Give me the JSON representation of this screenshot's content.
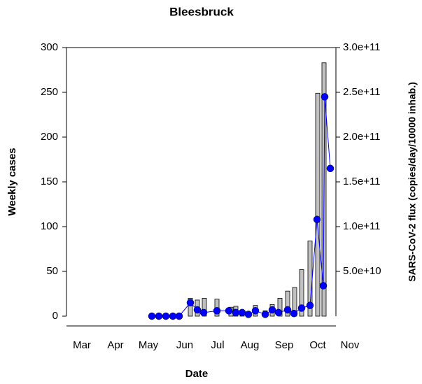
{
  "chart_data": {
    "type": "combo",
    "title": "Bleesbruck",
    "x_label": "Date",
    "y_label": "Weekly cases",
    "y2_label": "SARS-CoV-2 flux (copies/day/10000 inhab.)",
    "xlim": [
      0,
      38.5
    ],
    "xticks": [
      {
        "value": 2.2,
        "label": "Mar"
      },
      {
        "value": 7,
        "label": "Apr"
      },
      {
        "value": 11.7,
        "label": "May"
      },
      {
        "value": 16.9,
        "label": "Jun"
      },
      {
        "value": 21.6,
        "label": "Jul"
      },
      {
        "value": 26.2,
        "label": "Aug"
      },
      {
        "value": 31.1,
        "label": "Sep"
      },
      {
        "value": 35.9,
        "label": "Oct"
      },
      {
        "value": 40.5,
        "label": "Nov"
      }
    ],
    "ylim": [
      0,
      300
    ],
    "yticks": [
      0,
      50,
      100,
      150,
      200,
      250,
      300
    ],
    "y2lim": [
      0,
      300000000000
    ],
    "y2ticks": [
      {
        "value": 50000000000,
        "label": "5.0e+10"
      },
      {
        "value": 100000000000,
        "label": "1.0e+11"
      },
      {
        "value": 150000000000,
        "label": "1.5e+11"
      },
      {
        "value": 200000000000,
        "label": "2.0e+11"
      },
      {
        "value": 250000000000,
        "label": "2.5e+11"
      },
      {
        "value": 300000000000,
        "label": "3.0e+11"
      }
    ],
    "series": [
      {
        "type": "bar",
        "color": "#c0c0c0",
        "x": [
          17.7,
          18.7,
          19.7,
          21.5,
          23.5,
          24.2,
          25.1,
          27.0,
          28.4,
          29.4,
          30.5,
          31.6,
          32.6,
          33.6,
          34.8,
          35.9,
          36.8
        ],
        "values": [
          20,
          18,
          20,
          19,
          10,
          11,
          5,
          12,
          6,
          13,
          20,
          28,
          32,
          52,
          84,
          249,
          283
        ]
      },
      {
        "type": "line",
        "axis": "y2",
        "color": "#0000ff",
        "x": [
          12.2,
          13.2,
          14.2,
          15.2,
          16.1,
          17.7,
          18.7,
          19.6,
          21.5,
          23.2,
          24.2,
          25.1,
          26.0,
          27.0,
          28.4,
          29.4,
          30.3,
          31.6,
          32.5,
          33.6,
          34.8,
          35.8,
          36.7,
          36.9,
          37.7
        ],
        "values": [
          0,
          0,
          0,
          0,
          0,
          15000000000,
          7000000000,
          4000000000,
          6000000000,
          6000000000,
          4000000000,
          4000000000,
          2000000000,
          6000000000,
          2000000000,
          7000000000,
          4000000000,
          7000000000,
          3000000000,
          9000000000,
          12000000000,
          108000000000,
          34000000000,
          245000000000,
          165000000000
        ]
      }
    ]
  }
}
